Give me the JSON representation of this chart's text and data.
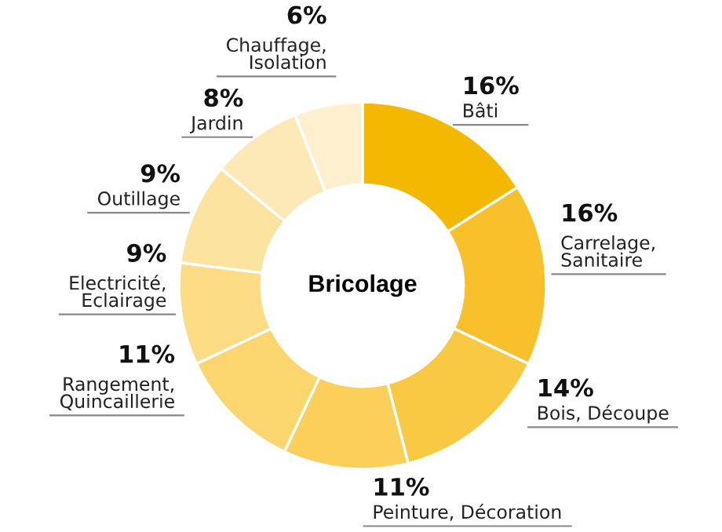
{
  "chart_data": {
    "type": "donut",
    "title": "Bricolage",
    "categories": [
      "Bâti",
      "Carrelage,\nSanitaire",
      "Bois, Découpe",
      "Peinture, Décoration",
      "Rangement,\nQuincaillerie",
      "Electricité,\nEclairage",
      "Outillage",
      "Jardin",
      "Chauffage,\nIsolation"
    ],
    "values": [
      16,
      16,
      14,
      11,
      11,
      9,
      9,
      8,
      6
    ],
    "value_labels": [
      "16%",
      "16%",
      "14%",
      "11%",
      "11%",
      "9%",
      "9%",
      "8%",
      "6%"
    ],
    "colors": [
      "#f5b800",
      "#f8c12c",
      "#f9c944",
      "#fad05a",
      "#fbd66e",
      "#fcdd86",
      "#fde3a0",
      "#fde9b8",
      "#feefcf"
    ]
  }
}
